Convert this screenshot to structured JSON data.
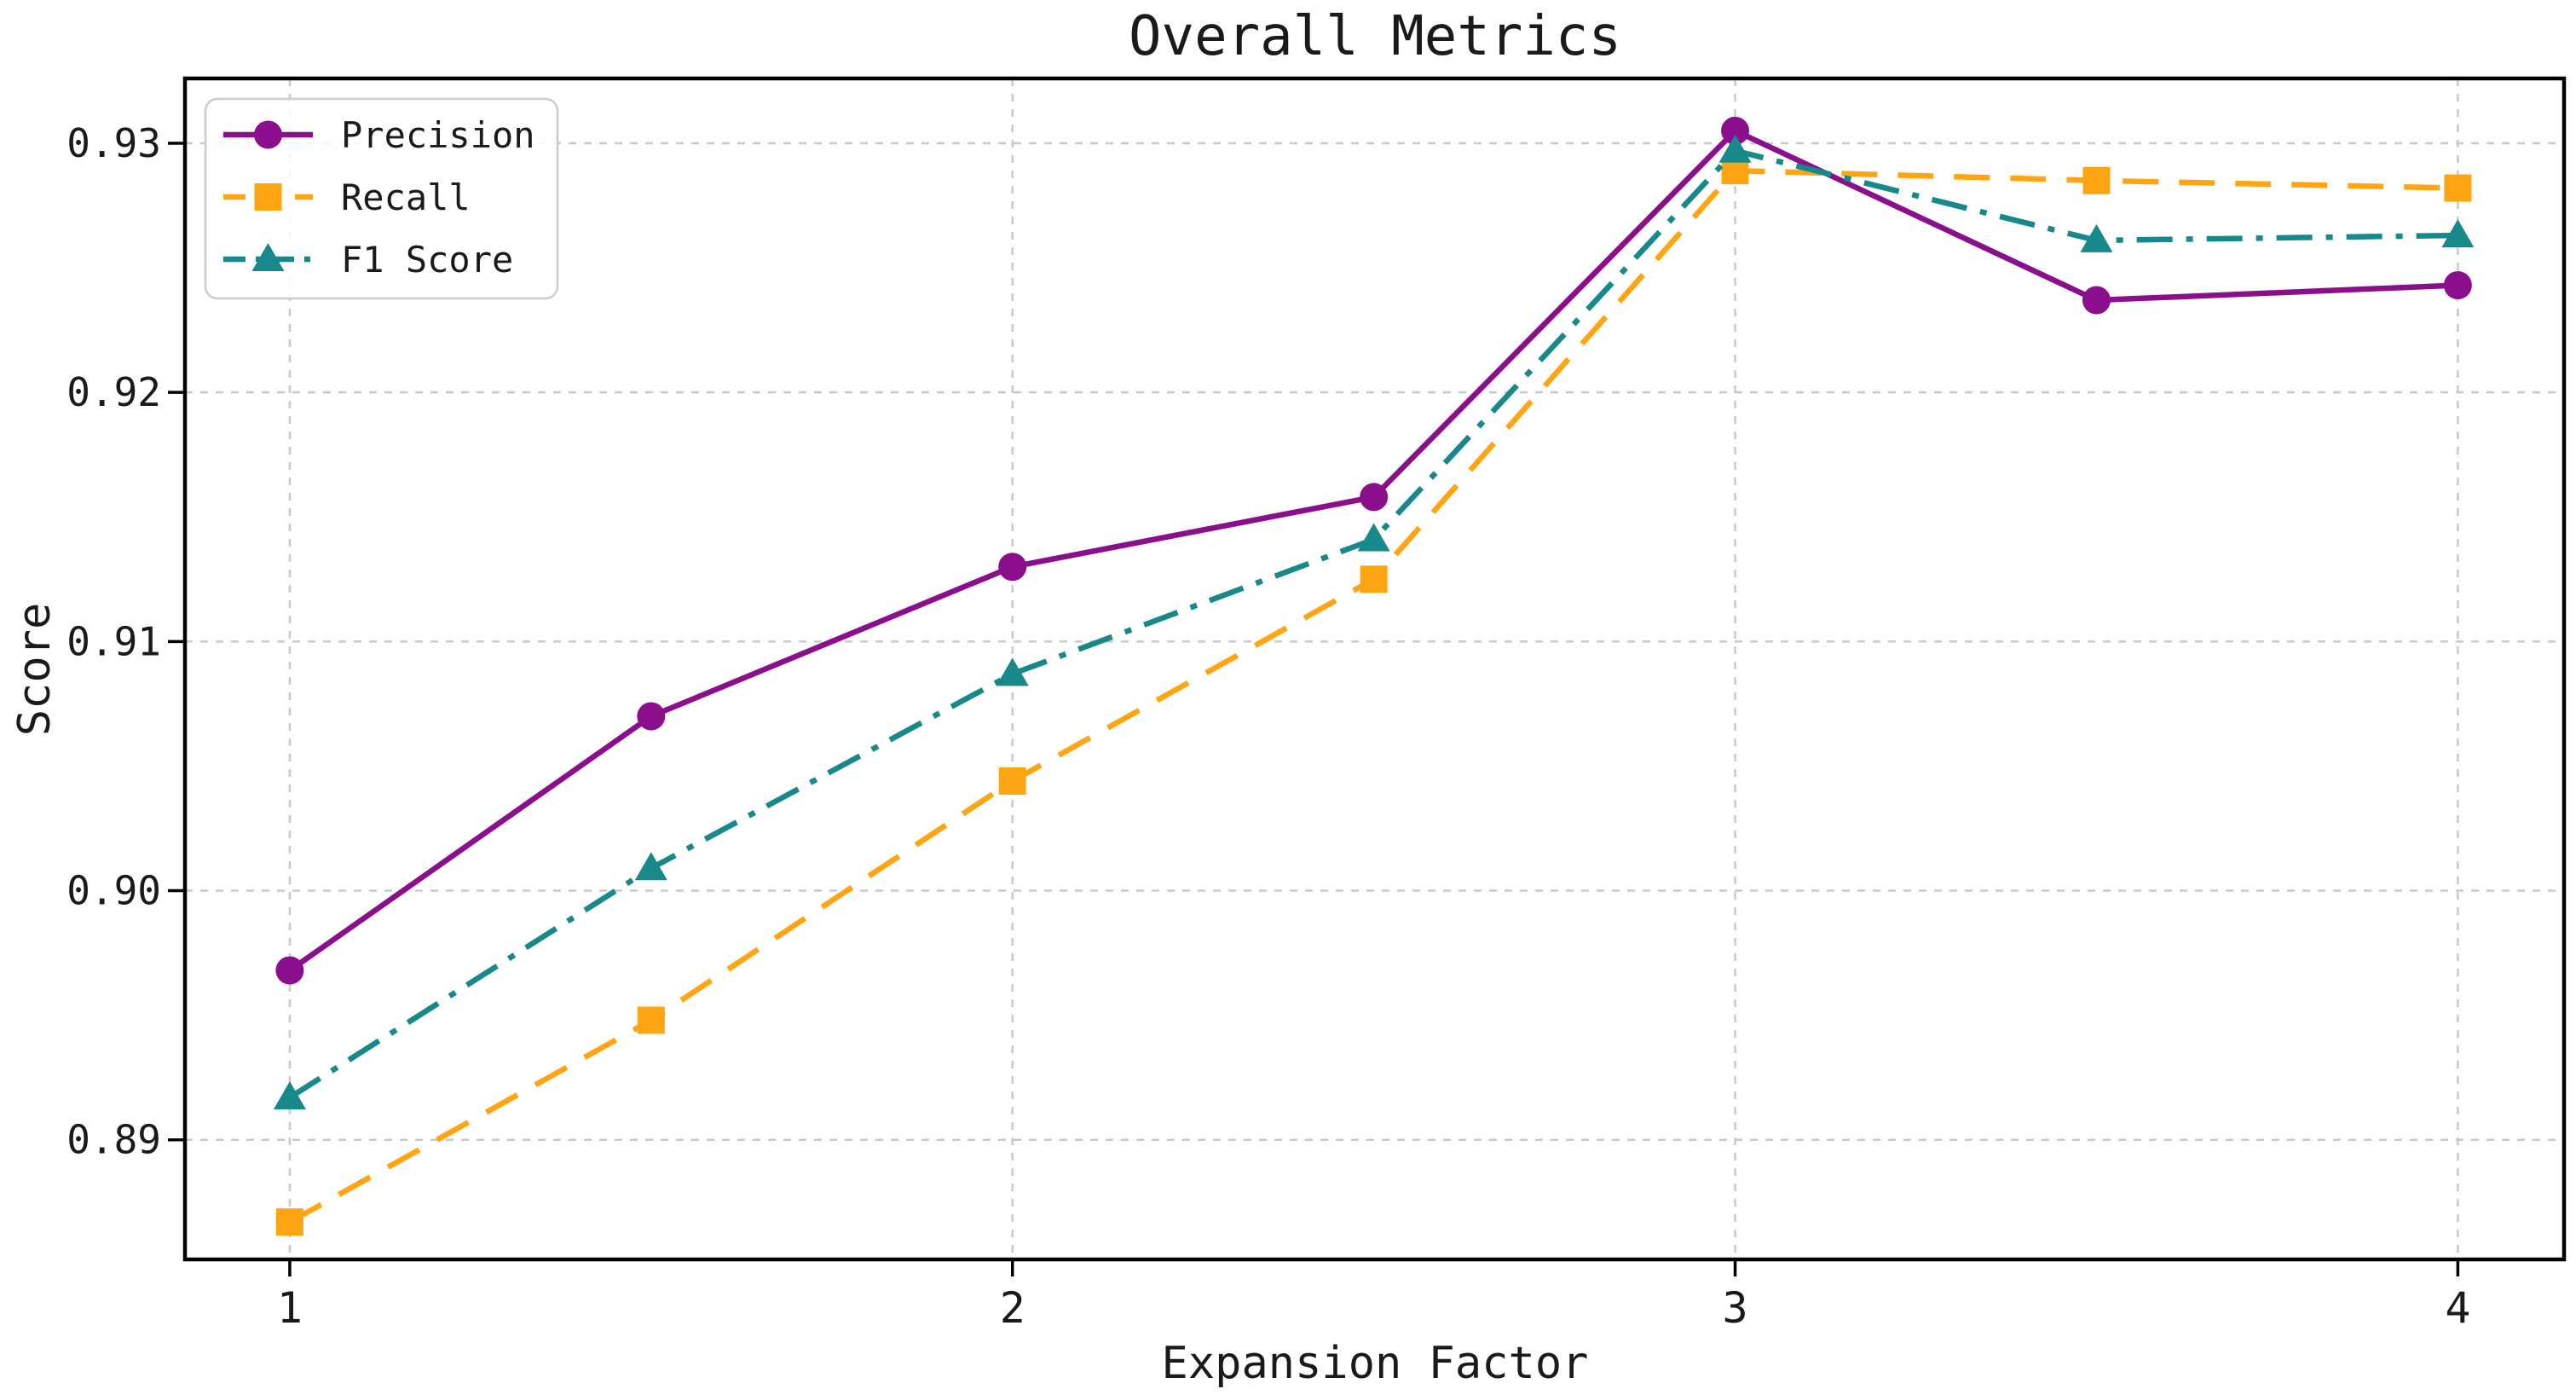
{
  "chart_data": {
    "type": "line",
    "title": "Overall Metrics",
    "xlabel": "Expansion Factor",
    "ylabel": "Score",
    "x": [
      1,
      1.5,
      2,
      2.5,
      3,
      3.5,
      4
    ],
    "series": [
      {
        "name": "Precision",
        "color": "#8b0f8c",
        "linestyle": "solid",
        "marker": "circle",
        "values": [
          0.8968,
          0.907,
          0.913,
          0.9158,
          0.9305,
          0.9237,
          0.9243
        ]
      },
      {
        "name": "Recall",
        "color": "#ffa513",
        "linestyle": "dashed",
        "marker": "square",
        "values": [
          0.8867,
          0.8948,
          0.9044,
          0.9125,
          0.9289,
          0.9285,
          0.9282
        ]
      },
      {
        "name": "F1 Score",
        "color": "#17898b",
        "linestyle": "dashdot",
        "marker": "triangle",
        "values": [
          0.8917,
          0.9009,
          0.9087,
          0.9141,
          0.9297,
          0.9261,
          0.9263
        ]
      }
    ],
    "x_ticks": {
      "values": [
        1,
        2,
        3,
        4
      ],
      "labels": [
        "1",
        "2",
        "3",
        "4"
      ]
    },
    "y_ticks": {
      "values": [
        0.89,
        0.9,
        0.91,
        0.92,
        0.93
      ],
      "labels": [
        "0.89",
        "0.90",
        "0.91",
        "0.92",
        "0.93"
      ]
    },
    "xlim": [
      0.855,
      4.147
    ],
    "ylim": [
      0.8852,
      0.9326
    ],
    "grid": true,
    "legend_position": "upper left",
    "styles": {
      "grid_color": "#c9c9c9",
      "spine_color": "#000000",
      "text_color": "#1a1a1a",
      "legend_border_color": "#cccccc",
      "legend_fill": "#ffffff",
      "background": "#ffffff"
    }
  }
}
